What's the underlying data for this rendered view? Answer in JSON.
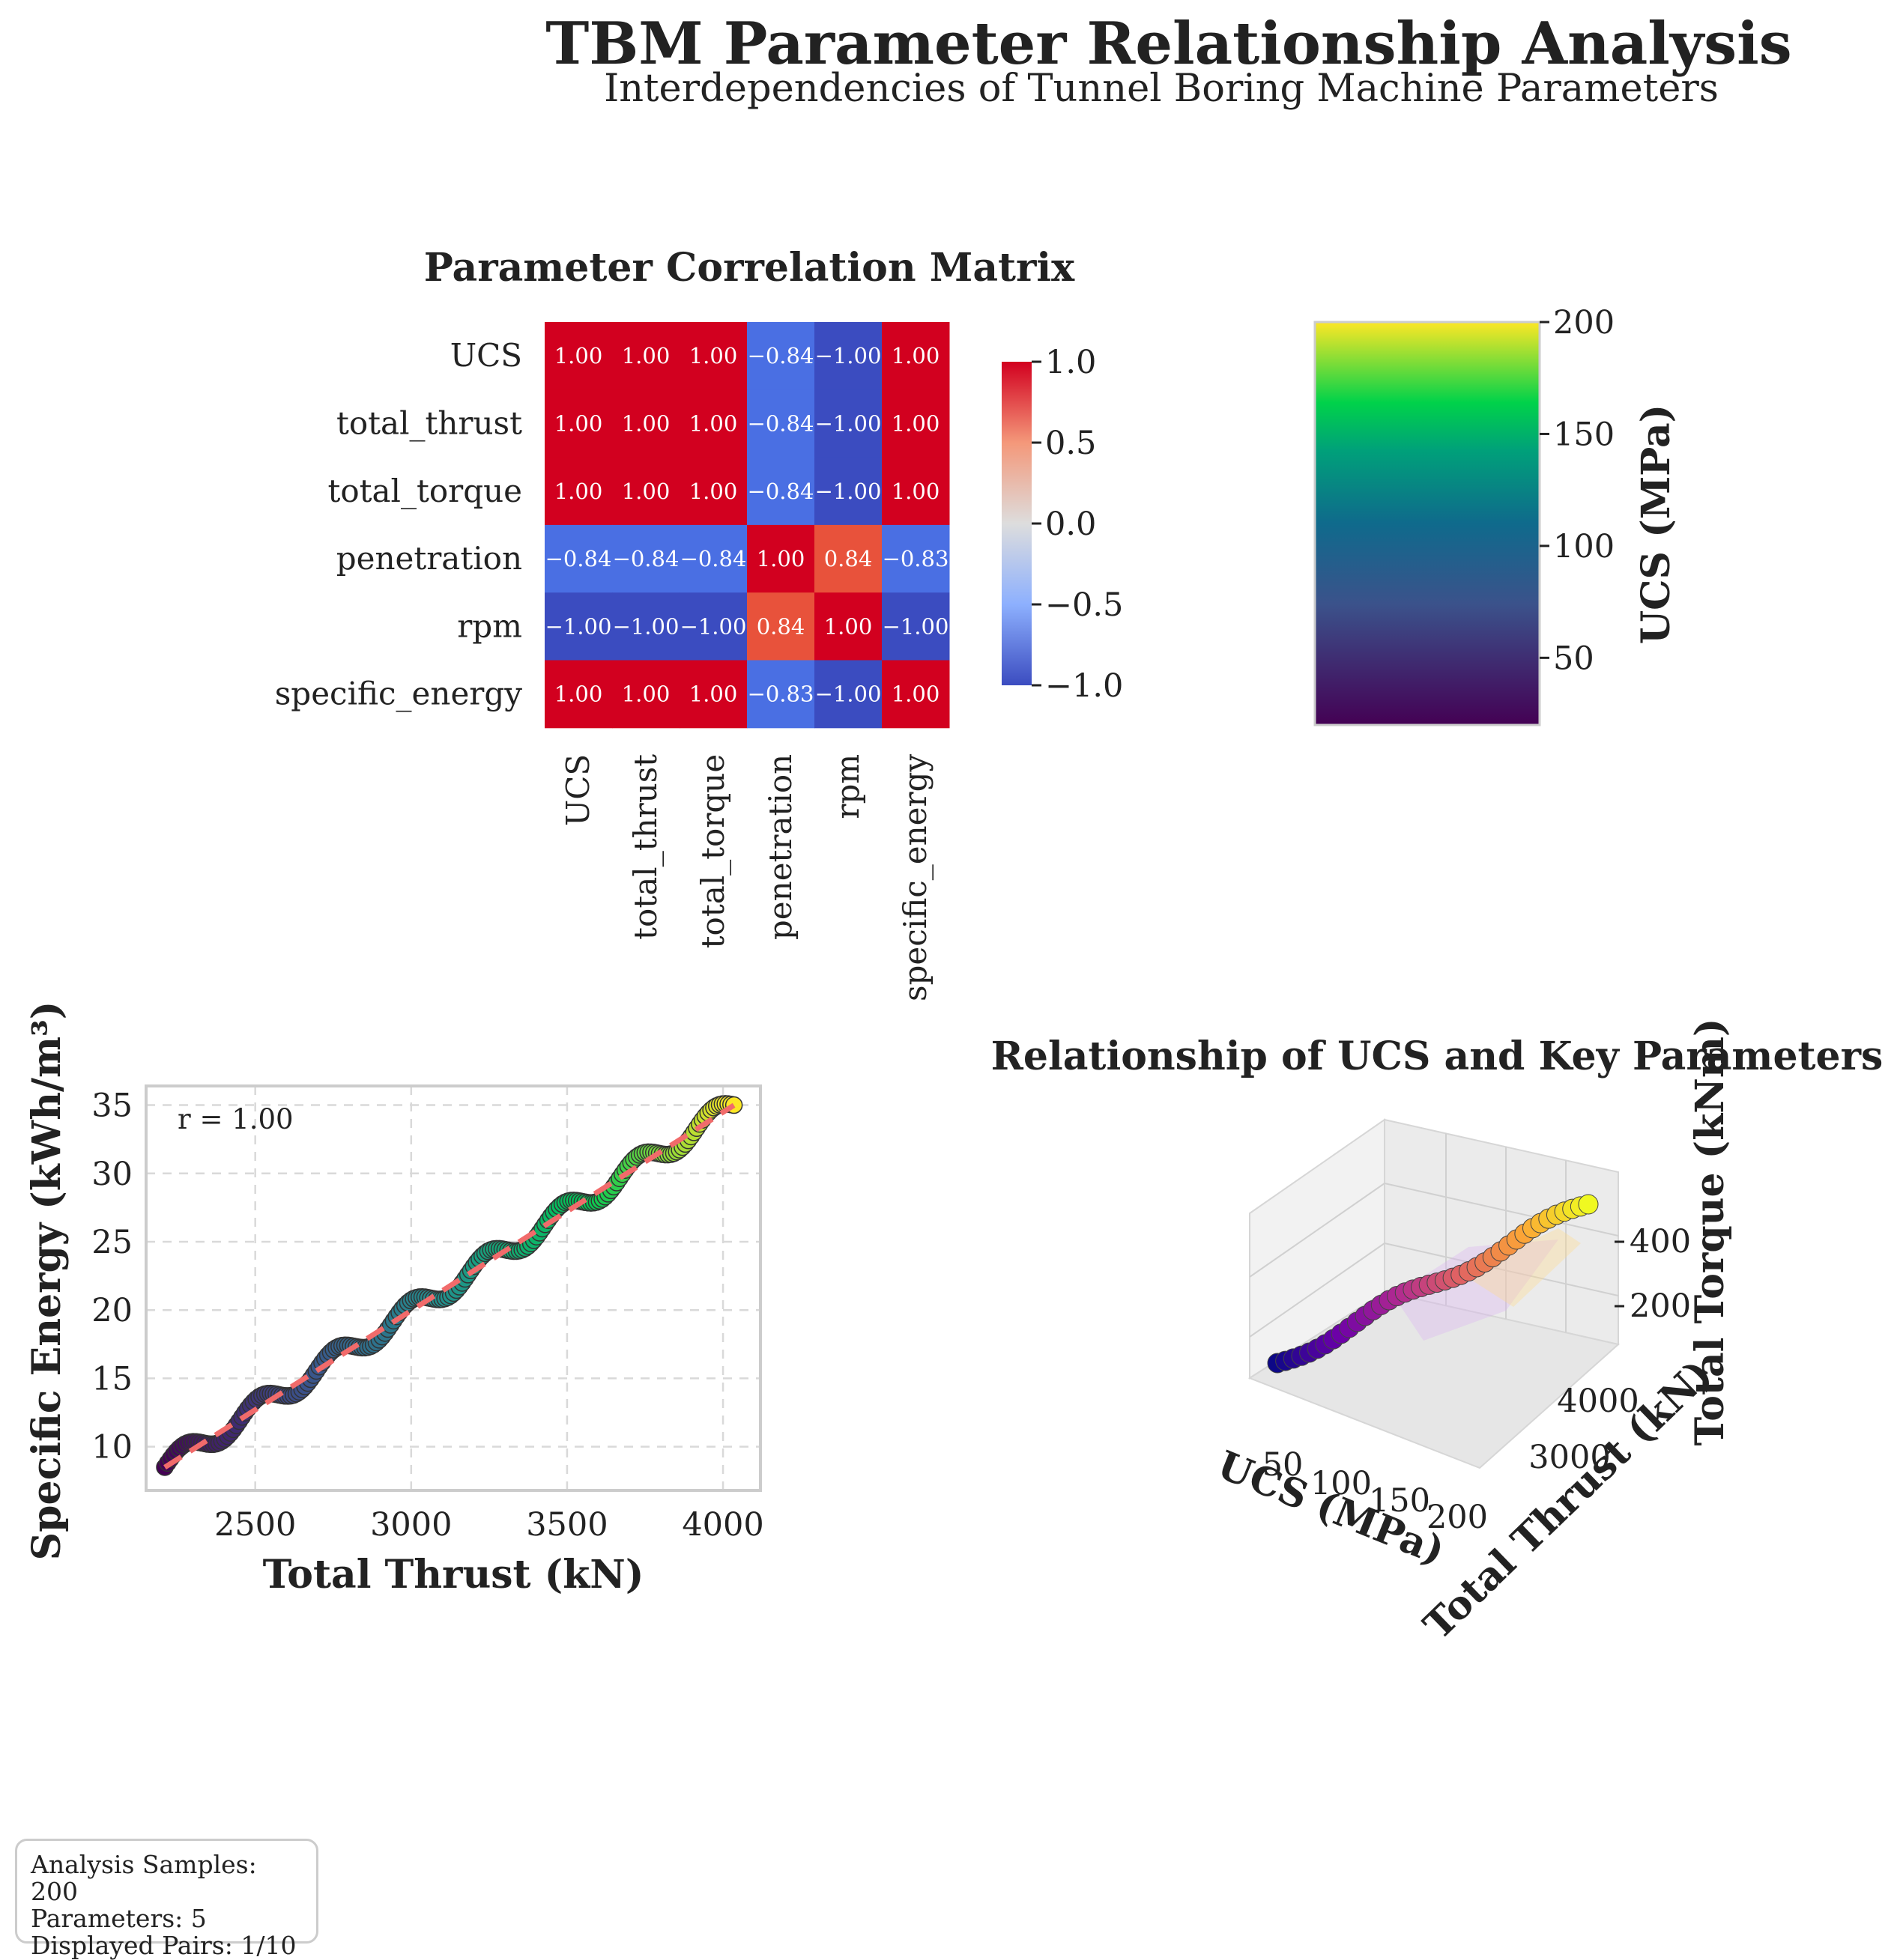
{
  "title": "TBM Parameter Relationship Analysis",
  "subtitle": "Interdependencies of Tunnel Boring Machine Parameters",
  "colors": {
    "corr_high": "#d2001f",
    "corr_low": "#3b4cc0",
    "viridis": [
      "#440154",
      "#3b528b",
      "#21918c",
      "#00c853",
      "#fde725"
    ],
    "plasma": [
      "#0d0887",
      "#6a00a8",
      "#b12a90",
      "#e16462",
      "#fca636",
      "#f0f921"
    ],
    "fit_line": "#f16b6b",
    "frame": "#cccccc"
  },
  "chart_data": [
    {
      "type": "heatmap",
      "title": "Parameter Correlation Matrix",
      "rows": [
        "UCS",
        "total_thrust",
        "total_torque",
        "penetration",
        "rpm",
        "specific_energy"
      ],
      "cols": [
        "UCS",
        "total_thrust",
        "total_torque",
        "penetration",
        "rpm",
        "specific_energy"
      ],
      "values": [
        [
          1.0,
          1.0,
          1.0,
          -0.84,
          -1.0,
          1.0
        ],
        [
          1.0,
          1.0,
          1.0,
          -0.84,
          -1.0,
          1.0
        ],
        [
          1.0,
          1.0,
          1.0,
          -0.84,
          -1.0,
          1.0
        ],
        [
          -0.84,
          -0.84,
          -0.84,
          1.0,
          0.84,
          -0.83
        ],
        [
          -1.0,
          -1.0,
          -1.0,
          0.84,
          1.0,
          -1.0
        ],
        [
          1.0,
          1.0,
          1.0,
          -0.83,
          -1.0,
          1.0
        ]
      ],
      "colorbar": {
        "range": [
          -1.0,
          1.0
        ],
        "ticks": [
          "1.0",
          "0.5",
          "0.0",
          "−0.5",
          "−1.0"
        ]
      }
    },
    {
      "type": "colorbar",
      "label": "UCS (MPa)",
      "range": [
        20,
        200
      ],
      "ticks": [
        "200",
        "150",
        "100",
        "50"
      ]
    },
    {
      "type": "scatter",
      "xlabel": "Total Thrust (kN)",
      "ylabel": "Specific Energy (kWh/m³)",
      "annotation": "r = 1.00",
      "xlim": [
        2150,
        4120
      ],
      "ylim": [
        6.8,
        36.4
      ],
      "xticks": [
        "2500",
        "3000",
        "3500",
        "4000"
      ],
      "yticks": [
        "10",
        "15",
        "20",
        "25",
        "30",
        "35"
      ],
      "x_range": [
        2210,
        4035
      ],
      "y_range": [
        8.5,
        35.0
      ],
      "points": 200,
      "fit": {
        "slope": 0.01452,
        "intercept": -23.6
      }
    },
    {
      "type": "scatter3d",
      "title": "Relationship of UCS and Key Parameters",
      "xlabel": "UCS (MPa)",
      "ylabel": "Total Thrust (kN)",
      "zlabel": "Total Torque (kNm)",
      "xticks": [
        "50",
        "100",
        "150",
        "200"
      ],
      "yticks": [
        "3000",
        "4000"
      ],
      "zticks": [
        "200",
        "400"
      ],
      "x_range": [
        20,
        200
      ],
      "points": 40
    }
  ],
  "stats": {
    "samples": "Analysis Samples: 200",
    "parameters": "Parameters: 5",
    "pairs": "Displayed Pairs: 1/10"
  }
}
